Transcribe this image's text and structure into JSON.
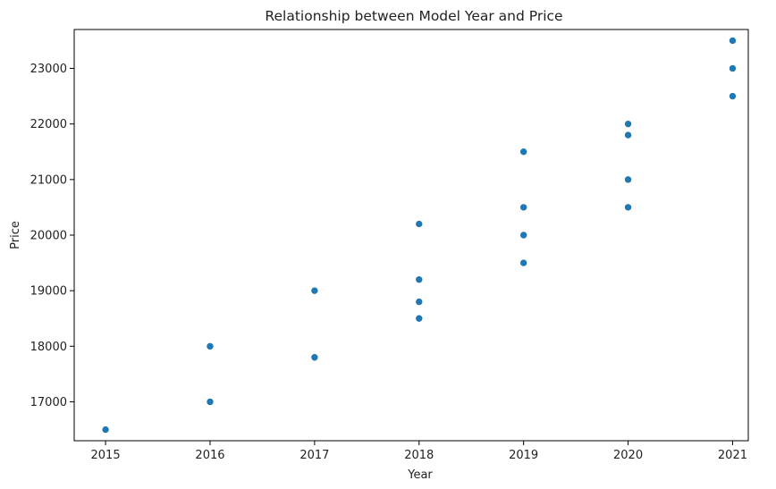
{
  "chart_data": {
    "type": "scatter",
    "title": "Relationship between Model Year and Price",
    "xlabel": "Year",
    "ylabel": "Price",
    "xlim": [
      2014.7,
      2021.15
    ],
    "ylim": [
      16300,
      23700
    ],
    "xticks": [
      2015,
      2016,
      2017,
      2018,
      2019,
      2020,
      2021
    ],
    "yticks": [
      17000,
      18000,
      19000,
      20000,
      21000,
      22000,
      23000
    ],
    "grid": false,
    "marker_color": "#1f77b4",
    "points": [
      {
        "x": 2015,
        "y": 16500
      },
      {
        "x": 2016,
        "y": 17000
      },
      {
        "x": 2016,
        "y": 18000
      },
      {
        "x": 2017,
        "y": 17800
      },
      {
        "x": 2017,
        "y": 19000
      },
      {
        "x": 2018,
        "y": 18500
      },
      {
        "x": 2018,
        "y": 18800
      },
      {
        "x": 2018,
        "y": 19200
      },
      {
        "x": 2018,
        "y": 20200
      },
      {
        "x": 2019,
        "y": 19500
      },
      {
        "x": 2019,
        "y": 20000
      },
      {
        "x": 2019,
        "y": 20500
      },
      {
        "x": 2019,
        "y": 21500
      },
      {
        "x": 2020,
        "y": 20500
      },
      {
        "x": 2020,
        "y": 21000
      },
      {
        "x": 2020,
        "y": 21800
      },
      {
        "x": 2020,
        "y": 22000
      },
      {
        "x": 2021,
        "y": 22500
      },
      {
        "x": 2021,
        "y": 23000
      },
      {
        "x": 2021,
        "y": 23500
      }
    ]
  }
}
